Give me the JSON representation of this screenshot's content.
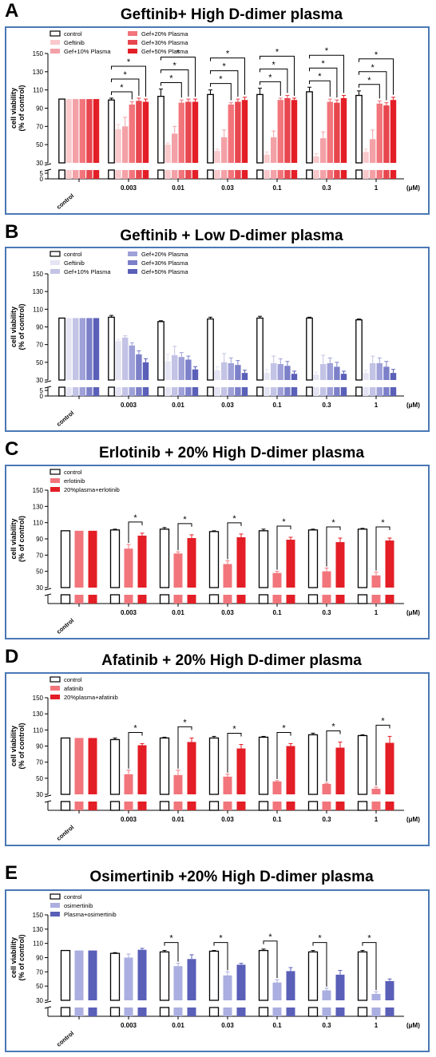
{
  "chart_data": [
    {
      "type": "bar",
      "letter": "A",
      "title": "Geftinib+  High D-dimer plasma",
      "ylabel": "cell viability\n(% of control)",
      "unit": "(μM)",
      "ylim": [
        30,
        150
      ],
      "yticks": [
        30,
        50,
        70,
        90,
        110,
        130,
        150
      ],
      "broken_ticks": [
        0,
        5
      ],
      "categories": [
        "control",
        "0.003",
        "0.01",
        "0.03",
        "0.1",
        "0.3",
        "1"
      ],
      "legend_cols": 2,
      "series": [
        {
          "name": "control",
          "color": "#ffffff",
          "values": [
            100,
            99,
            103,
            105,
            105,
            108,
            104
          ],
          "errors": [
            0,
            2,
            8,
            5,
            7,
            5,
            5
          ]
        },
        {
          "name": "Geftinib",
          "color": "#f9c9cc",
          "values": [
            100,
            67,
            50,
            43,
            39,
            37,
            42
          ],
          "errors": [
            0,
            5,
            2,
            2,
            3,
            3,
            3
          ]
        },
        {
          "name": "Gef+10% Plasma",
          "color": "#f3a1a7",
          "values": [
            100,
            70,
            62,
            58,
            58,
            57,
            56
          ],
          "errors": [
            0,
            10,
            8,
            8,
            7,
            7,
            10
          ]
        },
        {
          "name": "Gef+20% Plasma",
          "color": "#f2757c",
          "values": [
            100,
            94,
            96,
            94,
            99,
            97,
            95
          ],
          "errors": [
            0,
            3,
            3,
            2,
            2,
            3,
            3
          ]
        },
        {
          "name": "Gef+30% Plasma",
          "color": "#e8464e",
          "values": [
            100,
            98,
            97,
            97,
            101,
            96,
            93
          ],
          "errors": [
            0,
            3,
            3,
            3,
            3,
            3,
            3
          ]
        },
        {
          "name": "Gef+50% Plasma",
          "color": "#e31e26",
          "values": [
            100,
            97,
            97,
            99,
            99,
            101,
            99
          ],
          "errors": [
            0,
            3,
            3,
            3,
            2,
            3,
            3
          ]
        }
      ],
      "significance": [
        [
          1,
          3,
          "*"
        ],
        [
          1,
          4,
          "*"
        ],
        [
          1,
          5,
          "*"
        ]
      ]
    },
    {
      "type": "bar",
      "letter": "B",
      "title": "Geftinib + Low D-dimer plasma",
      "ylabel": "cell viability\n(% of control)",
      "unit": "(μM)",
      "ylim": [
        30,
        150
      ],
      "yticks": [
        30,
        50,
        70,
        90,
        110,
        130,
        150
      ],
      "broken_ticks": [
        0,
        5
      ],
      "categories": [
        "control",
        "0.003",
        "0.01",
        "0.03",
        "0.1",
        "0.3",
        "1"
      ],
      "legend_cols": 2,
      "series": [
        {
          "name": "control",
          "color": "#ffffff",
          "values": [
            100,
            101,
            96,
            99,
            100,
            100,
            98
          ],
          "errors": [
            0,
            2,
            1,
            2,
            2,
            1,
            1
          ]
        },
        {
          "name": "Geftinib",
          "color": "#e4e4f4",
          "values": [
            100,
            74,
            51,
            41,
            38,
            36,
            38
          ],
          "errors": [
            0,
            2,
            8,
            4,
            4,
            3,
            3
          ]
        },
        {
          "name": "Gef+10% Plasma",
          "color": "#c3c3e6",
          "values": [
            100,
            78,
            58,
            50,
            49,
            48,
            49
          ],
          "errors": [
            0,
            2,
            10,
            10,
            8,
            10,
            8
          ]
        },
        {
          "name": "Gef+20% Plasma",
          "color": "#9fa1d8",
          "values": [
            100,
            69,
            56,
            49,
            48,
            49,
            49
          ],
          "errors": [
            0,
            3,
            5,
            6,
            6,
            6,
            6
          ]
        },
        {
          "name": "Gef+30% Plasma",
          "color": "#7c80c9",
          "values": [
            100,
            59,
            53,
            47,
            46,
            45,
            45
          ],
          "errors": [
            0,
            4,
            4,
            5,
            5,
            5,
            6
          ]
        },
        {
          "name": "Gef+50% Plasma",
          "color": "#5a5fb8",
          "values": [
            100,
            50,
            42,
            38,
            37,
            37,
            38
          ],
          "errors": [
            0,
            4,
            3,
            3,
            3,
            3,
            4
          ]
        }
      ],
      "significance": []
    },
    {
      "type": "bar",
      "letter": "C",
      "title": "Erlotinib + 20% High D-dimer plasma",
      "ylabel": "cell viability\n(% of control)",
      "unit": "(μM)",
      "ylim": [
        30,
        150
      ],
      "yticks": [
        30,
        50,
        70,
        90,
        110,
        130,
        150
      ],
      "broken_ticks": [],
      "categories": [
        "control",
        "0.003",
        "0.01",
        "0.03",
        "0.1",
        "0.3",
        "1"
      ],
      "legend_cols": 1,
      "series": [
        {
          "name": "control",
          "color": "#ffffff",
          "values": [
            100,
            101,
            102,
            99,
            100,
            101,
            102
          ],
          "errors": [
            0,
            1,
            2,
            1,
            2,
            1,
            1
          ]
        },
        {
          "name": "erlotinib",
          "color": "#f2757c",
          "values": [
            100,
            78,
            72,
            59,
            48,
            50,
            45
          ],
          "errors": [
            0,
            5,
            2,
            4,
            2,
            4,
            4
          ]
        },
        {
          "name": "20%plasma+erlotinib",
          "color": "#e31e26",
          "values": [
            100,
            94,
            91,
            92,
            89,
            86,
            88
          ],
          "errors": [
            0,
            3,
            4,
            4,
            3,
            5,
            3
          ]
        }
      ],
      "significance": [
        [
          1,
          2,
          "*"
        ]
      ]
    },
    {
      "type": "bar",
      "letter": "D",
      "title": "Afatinib + 20% High D-dimer plasma",
      "ylabel": "cell viability\n(% of control)",
      "unit": "(μM)",
      "ylim": [
        30,
        150
      ],
      "yticks": [
        30,
        50,
        70,
        90,
        110,
        130,
        150
      ],
      "broken_ticks": [],
      "categories": [
        "control",
        "0.003",
        "0.01",
        "0.03",
        "0.1",
        "0.3",
        "1"
      ],
      "legend_cols": 1,
      "series": [
        {
          "name": "control",
          "color": "#ffffff",
          "values": [
            100,
            98,
            100,
            100,
            101,
            104,
            103
          ],
          "errors": [
            0,
            2,
            1,
            2,
            1,
            2,
            1
          ]
        },
        {
          "name": "afatinib",
          "color": "#f2757c",
          "values": [
            100,
            55,
            54,
            52,
            46,
            43,
            37
          ],
          "errors": [
            0,
            5,
            6,
            3,
            1,
            1,
            2
          ]
        },
        {
          "name": "20%plasma+afatinib",
          "color": "#e31e26",
          "values": [
            100,
            91,
            95,
            87,
            90,
            88,
            94
          ],
          "errors": [
            0,
            2,
            5,
            5,
            3,
            7,
            8
          ]
        }
      ],
      "significance": [
        [
          1,
          2,
          "*"
        ]
      ]
    },
    {
      "type": "bar",
      "letter": "E",
      "title": "Osimertinib +20% High D-dimer plasma",
      "ylabel": "cell viability\n(% of control)",
      "unit": "(μM)",
      "ylim": [
        30,
        150
      ],
      "yticks": [
        30,
        50,
        70,
        90,
        110,
        130,
        150
      ],
      "broken_ticks": [],
      "categories": [
        "control",
        "0.003",
        "0.01",
        "0.03",
        "0.1",
        "0.3",
        "1"
      ],
      "legend_cols": 1,
      "series": [
        {
          "name": "control",
          "color": "#ffffff",
          "values": [
            100,
            96,
            98,
            99,
            100,
            98,
            98
          ],
          "errors": [
            0,
            1,
            2,
            1,
            2,
            2,
            2
          ]
        },
        {
          "name": "osimertinib",
          "color": "#aaaee0",
          "values": [
            100,
            90,
            78,
            65,
            55,
            44,
            39
          ],
          "errors": [
            0,
            5,
            4,
            5,
            4,
            3,
            3
          ]
        },
        {
          "name": "Plasma+osimertinib",
          "color": "#5a5fb8",
          "values": [
            100,
            101,
            88,
            80,
            71,
            66,
            57
          ],
          "errors": [
            0,
            2,
            6,
            2,
            5,
            6,
            3
          ]
        }
      ],
      "significance": [
        [
          0,
          1,
          "*"
        ],
        [
          2,
          6,
          "*"
        ],
        [
          3,
          6,
          "*"
        ],
        [
          4,
          6,
          "*"
        ],
        [
          5,
          6,
          "*"
        ],
        [
          6,
          6,
          "*"
        ]
      ]
    }
  ]
}
